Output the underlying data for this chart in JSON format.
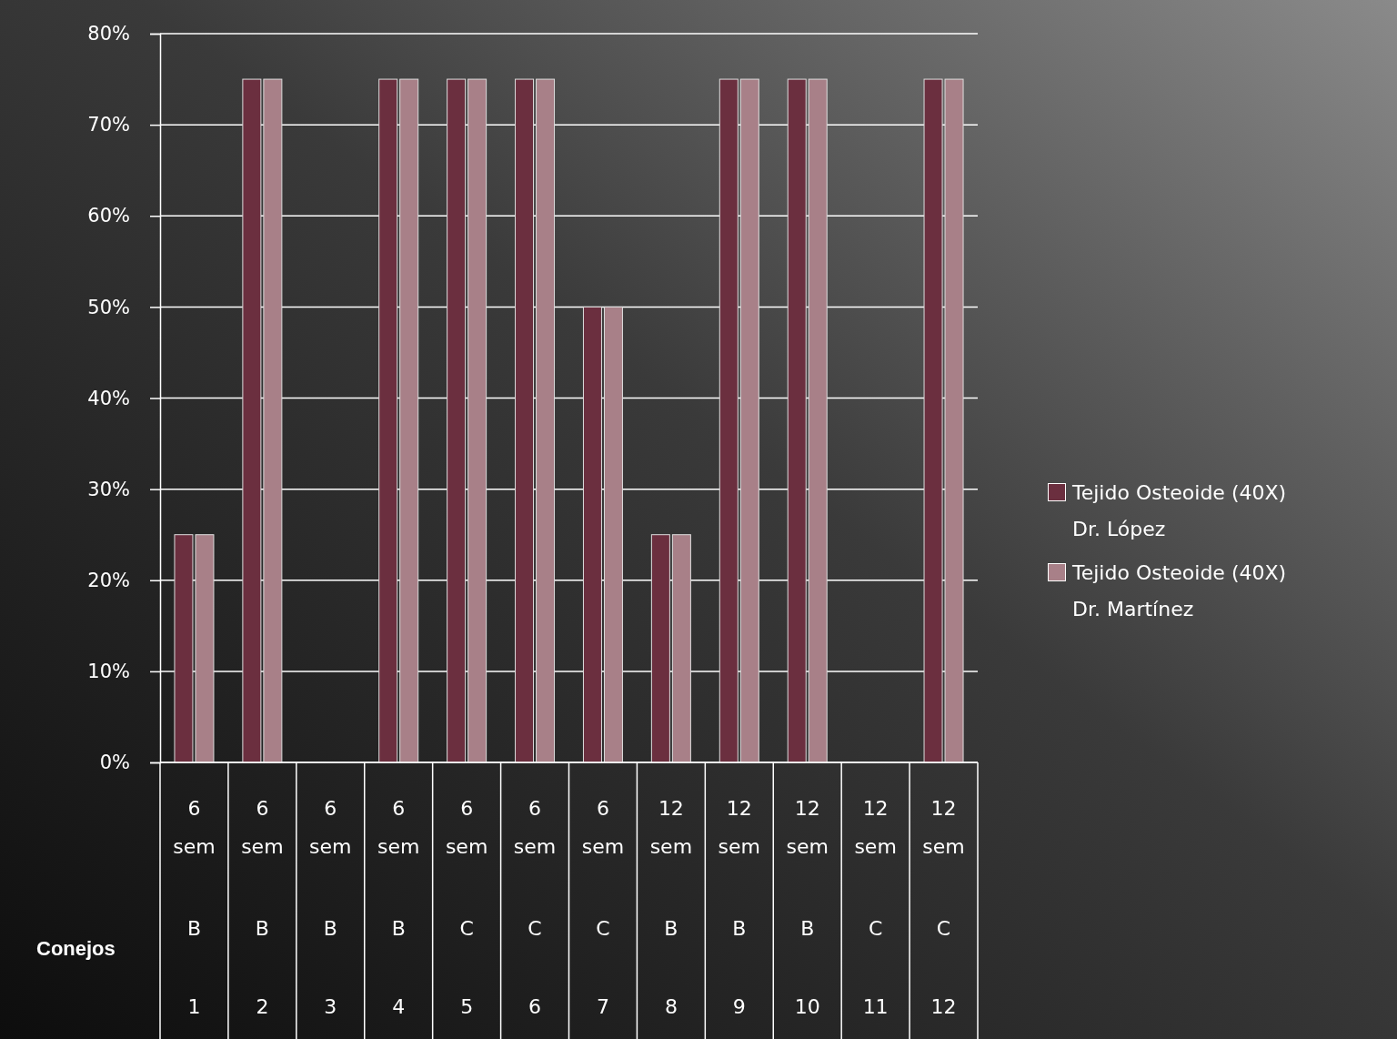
{
  "chart_data": {
    "type": "bar",
    "annotations": [
      "Conejos"
    ],
    "categories": [
      "6 sem B 1",
      "6 sem B 2",
      "6 sem B 3",
      "6 sem B 4",
      "6 sem C 5",
      "6 sem C 6",
      "6 sem C 7",
      "12 sem B 8",
      "12 sem B 9",
      "12 sem B 10",
      "12 sem C 11",
      "12 sem C 12"
    ],
    "series": [
      {
        "name": "Tejido Osteoide (40X) Dr. López",
        "color": "#6b2f3f",
        "values": [
          25,
          75,
          0,
          75,
          75,
          75,
          50,
          25,
          75,
          75,
          0,
          75
        ]
      },
      {
        "name": "Tejido Osteoide (40X) Dr. Martínez",
        "color": "#a88088",
        "values": [
          25,
          75,
          0,
          75,
          75,
          75,
          50,
          25,
          75,
          75,
          0,
          75
        ]
      }
    ],
    "ylim": [
      0,
      80
    ],
    "yticks": [
      {
        "value": 0,
        "label": "0%"
      },
      {
        "value": 10,
        "label": "10%"
      },
      {
        "value": 20,
        "label": "20%"
      },
      {
        "value": 30,
        "label": "30%"
      },
      {
        "value": 40,
        "label": "40%"
      },
      {
        "value": 50,
        "label": "50%"
      },
      {
        "value": 60,
        "label": "60%"
      },
      {
        "value": 70,
        "label": "70%"
      },
      {
        "value": 80,
        "label": "80%"
      }
    ],
    "grid": "y",
    "legend": "right"
  }
}
